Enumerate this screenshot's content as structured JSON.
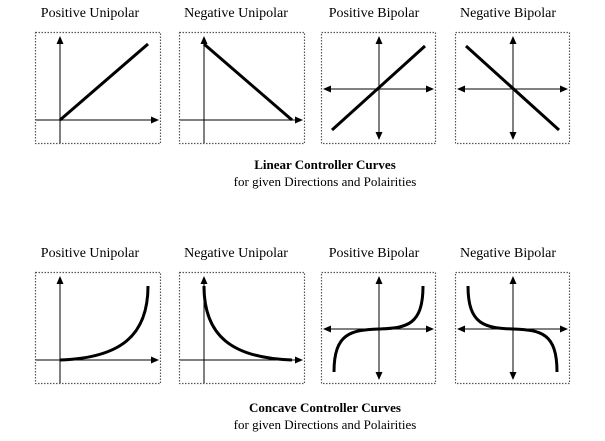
{
  "rows": [
    {
      "panels": [
        {
          "label": "Positive Unipolar",
          "polarity": "unipolar",
          "direction": "positive"
        },
        {
          "label": "Negative Unipolar",
          "polarity": "unipolar",
          "direction": "negative"
        },
        {
          "label": "Positive Bipolar",
          "polarity": "bipolar",
          "direction": "positive"
        },
        {
          "label": "Negative Bipolar",
          "polarity": "bipolar",
          "direction": "negative"
        }
      ],
      "curve": "linear",
      "caption_title": "Linear Controller Curves",
      "caption_sub": "for given Directions and Polairities"
    },
    {
      "panels": [
        {
          "label": "Positive Unipolar",
          "polarity": "unipolar",
          "direction": "positive"
        },
        {
          "label": "Negative Unipolar",
          "polarity": "unipolar",
          "direction": "negative"
        },
        {
          "label": "Positive Bipolar",
          "polarity": "bipolar",
          "direction": "positive"
        },
        {
          "label": "Negative Bipolar",
          "polarity": "bipolar",
          "direction": "negative"
        }
      ],
      "curve": "concave",
      "caption_title": "Concave Controller Curves",
      "caption_sub": "for given Directions and Polairities"
    }
  ],
  "colors": {
    "stroke": "#000000",
    "frame": "#555555"
  }
}
